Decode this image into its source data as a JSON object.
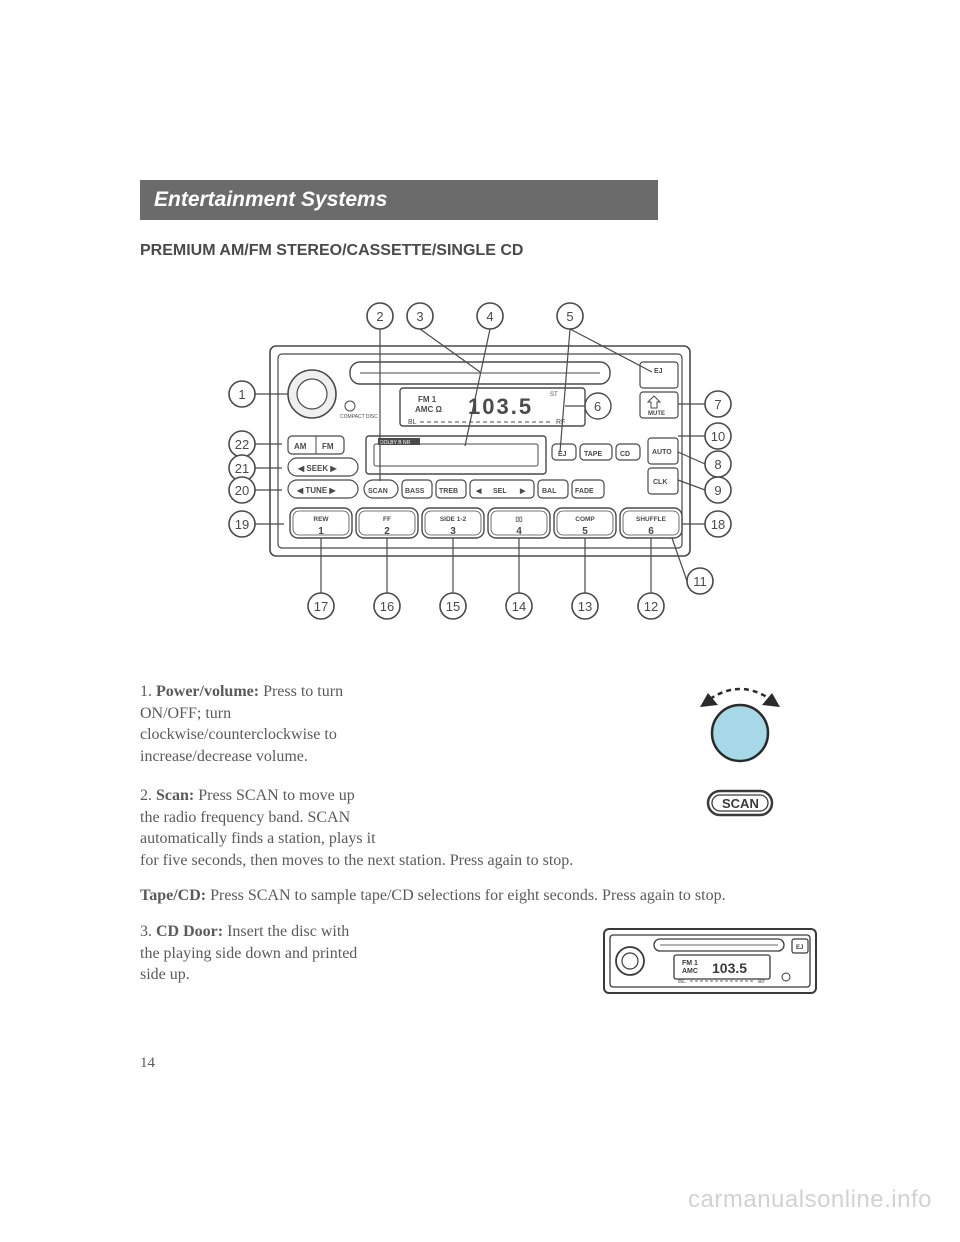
{
  "header": {
    "title": "Entertainment Systems"
  },
  "section_title": "PREMIUM AM/FM STEREO/CASSETTE/SINGLE CD",
  "page_number": "14",
  "watermark": "carmanualsonline.info",
  "diagram": {
    "type": "labeled-device-diagram",
    "display_text": {
      "band": "FM 1",
      "source_label": "AMC",
      "freq": "103.5",
      "freq_suffix": "ST",
      "balance_left": "BL",
      "balance_right": "RF"
    },
    "buttons_top_right": [
      "EJ",
      "MUTE"
    ],
    "left_stack": [
      "AM",
      "FM",
      "◀ SEEK ▶",
      "◀ TUNE ▶"
    ],
    "center_row": [
      "SCAN",
      "BASS",
      "TREB",
      "◀",
      "SEL",
      "▶",
      "BAL",
      "FADE"
    ],
    "cassette_label": "DOLBY B NR",
    "tape_controls": [
      "EJ",
      "TAPE",
      "CD"
    ],
    "right_stack": [
      "AUTO",
      "CLK"
    ],
    "preset_row": [
      {
        "top": "REW",
        "num": "1"
      },
      {
        "top": "FF",
        "num": "2"
      },
      {
        "top": "SIDE 1-2",
        "num": "3"
      },
      {
        "top": "▯▯",
        "num": "4"
      },
      {
        "top": "COMP",
        "num": "5"
      },
      {
        "top": "SHUFFLE",
        "num": "6"
      }
    ],
    "callouts_top": [
      "2",
      "3",
      "4",
      "5"
    ],
    "callouts_left": [
      "1",
      "22",
      "21",
      "20",
      "19"
    ],
    "callouts_right": [
      "7",
      "10",
      "8",
      "9",
      "18",
      "11"
    ],
    "callouts_bottom": [
      "17",
      "16",
      "15",
      "14",
      "13",
      "12"
    ],
    "callout_6": "6",
    "colors": {
      "stroke": "#4a4a4a",
      "fill": "#ffffff",
      "knob_fill": "#efefef",
      "callout_fill": "#ffffff",
      "callout_stroke": "#4a4a4a"
    },
    "line_width": 1.6,
    "callout_radius": 13,
    "font": {
      "ui_size": 7,
      "callout_size": 13
    }
  },
  "items": [
    {
      "num": "1.",
      "label": "Power/volume:",
      "text_lines": [
        "Press to turn",
        "ON/OFF; turn",
        "clockwise/counterclockwise to",
        "increase/decrease volume."
      ],
      "icon": "power-knob"
    },
    {
      "num": "2.",
      "label": "Scan:",
      "text_lines_before_wrap": [
        "Press SCAN to move up",
        "the radio frequency band. SCAN",
        "automatically finds a station, plays it"
      ],
      "text_full_width": "for five seconds, then moves to the next station. Press again to stop.",
      "icon": "scan-button"
    },
    {
      "label": "Tape/CD:",
      "text": "Press SCAN to sample tape/CD selections for eight seconds. Press again to stop."
    },
    {
      "num": "3.",
      "label": "CD Door:",
      "text_lines": [
        "Insert the disc with",
        "the playing side down and printed",
        "side up."
      ],
      "icon": "mini-radio"
    }
  ],
  "icons": {
    "power-knob": {
      "circle_fill": "#a7d8e8",
      "arrow_fill": "#2b2b2b",
      "size": 90
    },
    "scan-button": {
      "label": "SCAN",
      "stroke": "#3a3a3a",
      "bg": "#ffffff",
      "size": 44
    },
    "mini-radio": {
      "display": "103.5",
      "band": "FM 1",
      "amc": "AMC",
      "stroke": "#3a3a3a"
    }
  }
}
